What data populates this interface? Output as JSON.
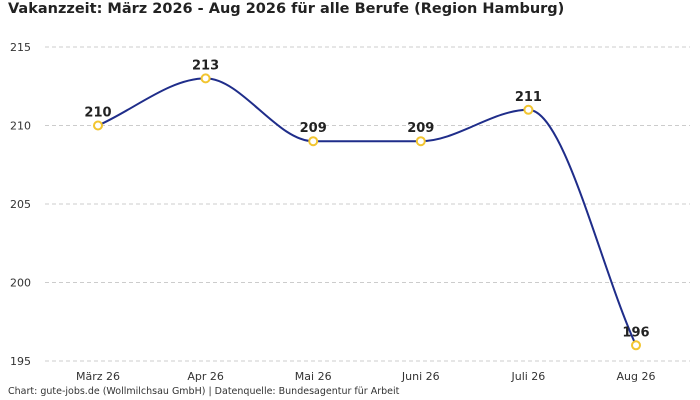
{
  "chart_data": {
    "type": "line",
    "title": "Vakanzzeit: März 2026 - Aug 2026 für alle Berufe (Region Hamburg)",
    "categories": [
      "März 26",
      "Apr 26",
      "Mai 26",
      "Juni 26",
      "Juli 26",
      "Aug 26"
    ],
    "series": [
      {
        "values": [
          210,
          213,
          209,
          209,
          211,
          196
        ]
      }
    ],
    "y_ticks": [
      195,
      200,
      205,
      210,
      215
    ],
    "ylim": [
      195,
      215
    ],
    "grid": true,
    "xlabel": "",
    "ylabel": "",
    "footer": "Chart: gute-jobs.de (Wollmilchsau GmbH) | Datenquelle: Bundesagentur für Arbeit",
    "colors": {
      "line": "#1f2d8a",
      "marker_stroke": "#f2c530",
      "marker_fill": "#ffffff",
      "grid": "#cccccc"
    }
  }
}
